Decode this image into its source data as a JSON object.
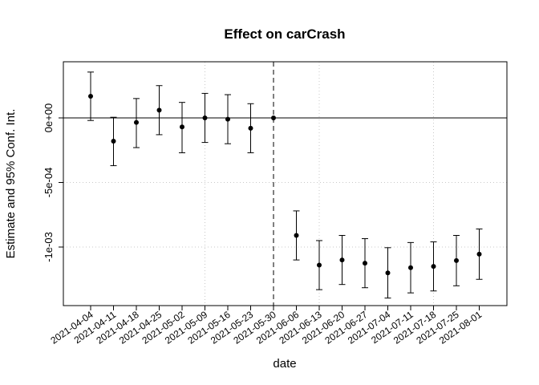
{
  "chart_data": {
    "type": "scatter",
    "title": "Effect on carCrash",
    "xlabel": "date",
    "ylabel": "Estimate and 95% Conf. Int.",
    "x": [
      "2021-04-04",
      "2021-04-11",
      "2021-04-18",
      "2021-04-25",
      "2021-05-02",
      "2021-05-09",
      "2021-05-16",
      "2021-05-23",
      "2021-05-30",
      "2021-06-06",
      "2021-06-13",
      "2021-06-20",
      "2021-06-27",
      "2021-07-04",
      "2021-07-11",
      "2021-07-18",
      "2021-07-25",
      "2021-08-01"
    ],
    "estimate": [
      0.000168,
      -0.00018,
      -3.5e-05,
      6e-05,
      -7e-05,
      0.0,
      -1e-05,
      -8e-05,
      0.0,
      -0.00091,
      -0.00114,
      -0.0011,
      -0.001125,
      -0.0012,
      -0.00116,
      -0.00115,
      -0.001105,
      -0.001055
    ],
    "ci_lower": [
      -2e-05,
      -0.00037,
      -0.00023,
      -0.00013,
      -0.00027,
      -0.00019,
      -0.0002,
      -0.00027,
      0.0,
      -0.0011,
      -0.00133,
      -0.00129,
      -0.001315,
      -0.001395,
      -0.001355,
      -0.00134,
      -0.0013,
      -0.00125
    ],
    "ci_upper": [
      0.000355,
      5e-06,
      0.00015,
      0.00025,
      0.00012,
      0.00019,
      0.00018,
      0.00011,
      0.0,
      -0.00072,
      -0.00095,
      -0.00091,
      -0.000935,
      -0.001005,
      -0.000965,
      -0.00096,
      -0.00091,
      -0.00086
    ],
    "ylim": [
      -0.00145,
      0.00045
    ],
    "yticks": [
      0.0,
      -0.0005,
      -0.001
    ],
    "ytick_labels": [
      "0e+00",
      "-5e-04",
      "-1e-03"
    ],
    "reference_line_y": 0,
    "event_index": 8,
    "grid": true,
    "colors": {
      "points": "#000000",
      "grid": "#c8c8c8",
      "event_line": "#555555"
    }
  }
}
